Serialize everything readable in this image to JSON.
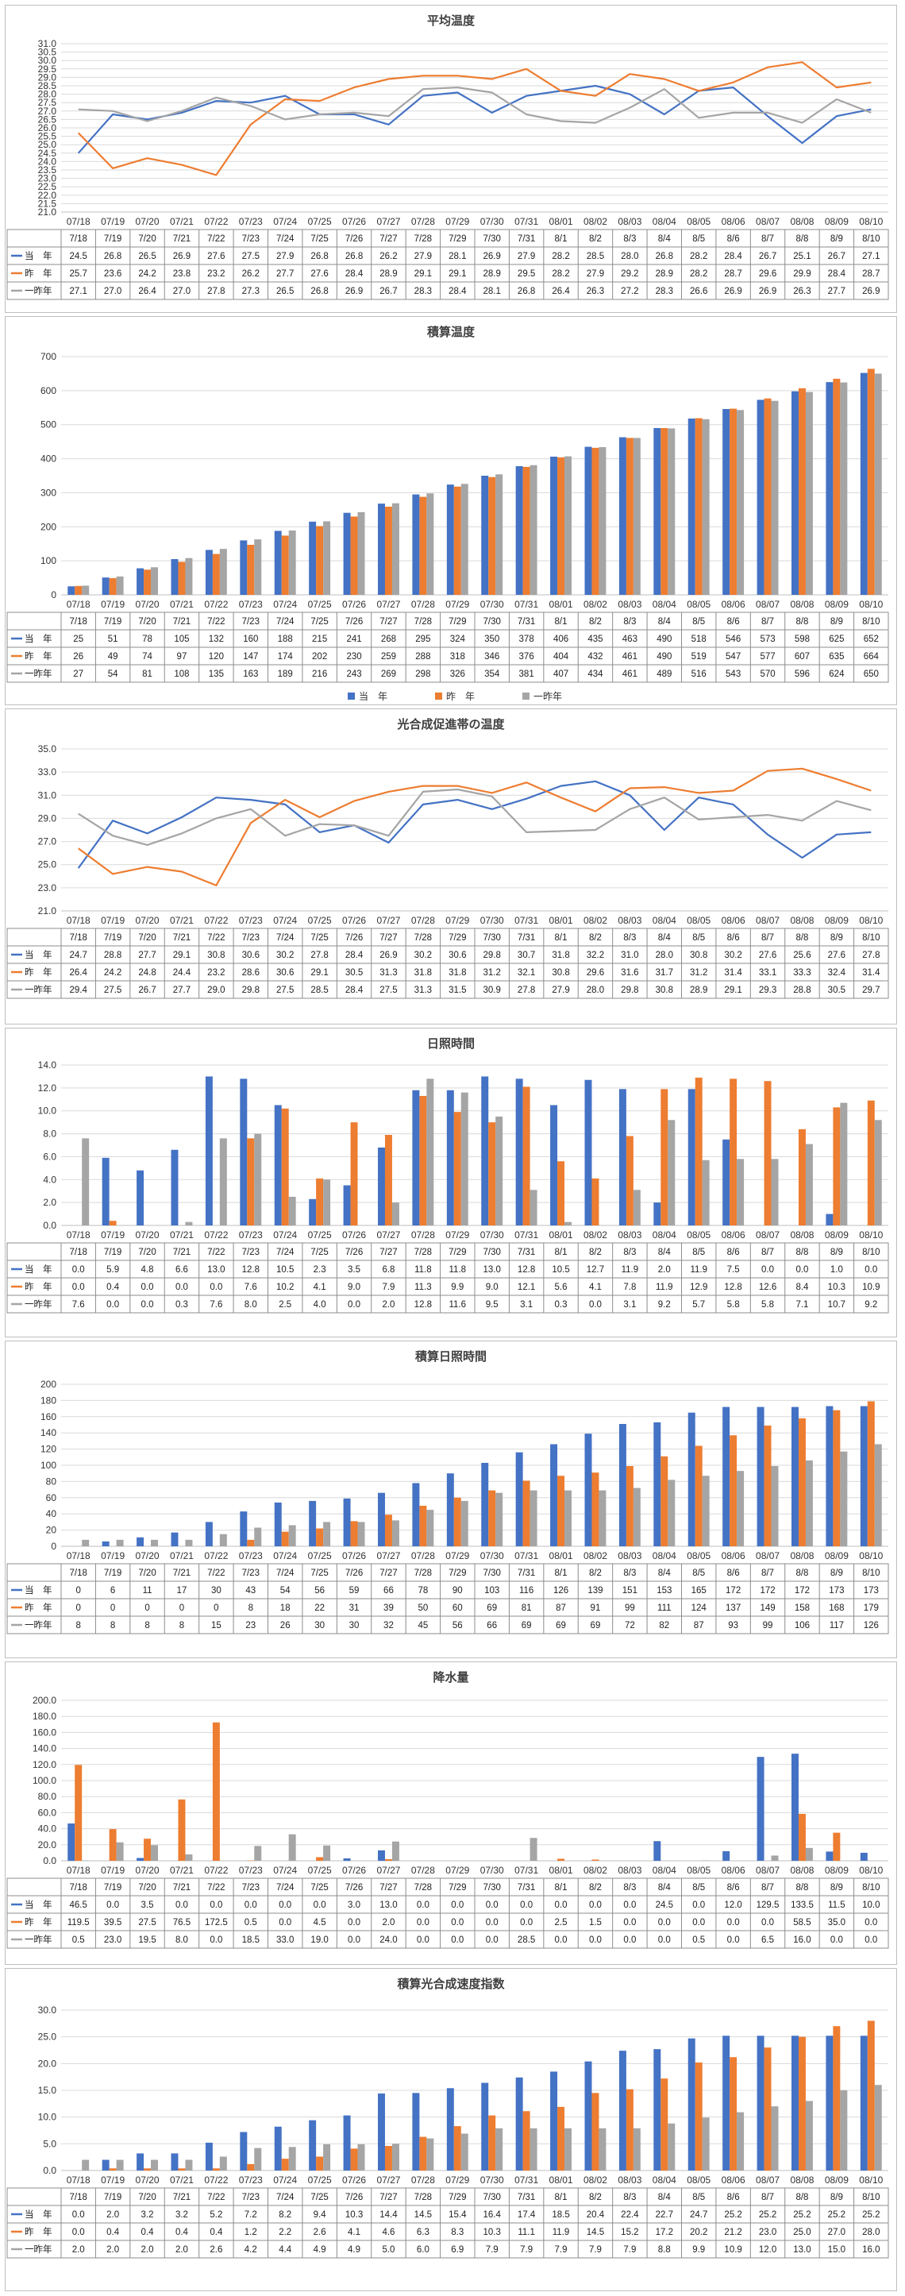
{
  "colors": {
    "current": "#4472C4",
    "last_year": "#ED7D31",
    "two_years_ago": "#A5A5A5"
  },
  "legend_labels": {
    "current": "当　年",
    "last_year": "昨　年",
    "two_years_ago": "一昨年"
  },
  "chart_data": [
    {
      "type": "line",
      "title": "平均温度",
      "categories": [
        "07/18",
        "07/19",
        "07/20",
        "07/21",
        "07/22",
        "07/23",
        "07/24",
        "07/25",
        "07/26",
        "07/27",
        "07/28",
        "07/29",
        "07/30",
        "07/31",
        "08/01",
        "08/02",
        "08/03",
        "08/04",
        "08/05",
        "08/06",
        "08/07",
        "08/08",
        "08/09",
        "08/10"
      ],
      "table_categories": [
        "7/18",
        "7/19",
        "7/20",
        "7/21",
        "7/22",
        "7/23",
        "7/24",
        "7/25",
        "7/26",
        "7/27",
        "7/28",
        "7/29",
        "7/30",
        "7/31",
        "8/1",
        "8/2",
        "8/3",
        "8/4",
        "8/5",
        "8/6",
        "8/7",
        "8/8",
        "8/9",
        "8/10"
      ],
      "ylim": [
        21.0,
        31.0
      ],
      "ystep": 0.5,
      "ydecimals": 1,
      "series": [
        {
          "key": "current",
          "name": "当　年",
          "values": [
            24.5,
            26.8,
            26.5,
            26.9,
            27.6,
            27.5,
            27.9,
            26.8,
            26.8,
            26.2,
            27.9,
            28.1,
            26.9,
            27.9,
            28.2,
            28.5,
            28.0,
            26.8,
            28.2,
            28.4,
            26.7,
            25.1,
            26.7,
            27.1
          ]
        },
        {
          "key": "last_year",
          "name": "昨　年",
          "values": [
            25.7,
            23.6,
            24.2,
            23.8,
            23.2,
            26.2,
            27.7,
            27.6,
            28.4,
            28.9,
            29.1,
            29.1,
            28.9,
            29.5,
            28.2,
            27.9,
            29.2,
            28.9,
            28.2,
            28.7,
            29.6,
            29.9,
            28.4,
            28.7
          ]
        },
        {
          "key": "two_years_ago",
          "name": "一昨年",
          "values": [
            27.1,
            27.0,
            26.4,
            27.0,
            27.8,
            27.3,
            26.5,
            26.8,
            26.9,
            26.7,
            28.3,
            28.4,
            28.1,
            26.8,
            26.4,
            26.3,
            27.2,
            28.3,
            26.6,
            26.9,
            26.9,
            26.3,
            27.7,
            26.9
          ]
        }
      ],
      "table_decimals": 1,
      "legend": "none"
    },
    {
      "type": "bar",
      "title": "積算温度",
      "categories": [
        "07/18",
        "07/19",
        "07/20",
        "07/21",
        "07/22",
        "07/23",
        "07/24",
        "07/25",
        "07/26",
        "07/27",
        "07/28",
        "07/29",
        "07/30",
        "07/31",
        "08/01",
        "08/02",
        "08/03",
        "08/04",
        "08/05",
        "08/06",
        "08/07",
        "08/08",
        "08/09",
        "08/10"
      ],
      "table_categories": [
        "7/18",
        "7/19",
        "7/20",
        "7/21",
        "7/22",
        "7/23",
        "7/24",
        "7/25",
        "7/26",
        "7/27",
        "7/28",
        "7/29",
        "7/30",
        "7/31",
        "8/1",
        "8/2",
        "8/3",
        "8/4",
        "8/5",
        "8/6",
        "8/7",
        "8/8",
        "8/9",
        "8/10"
      ],
      "ylim": [
        0,
        700
      ],
      "ystep": 100,
      "ydecimals": 0,
      "series": [
        {
          "key": "current",
          "name": "当　年",
          "values": [
            25,
            51,
            78,
            105,
            132,
            160,
            188,
            215,
            241,
            268,
            295,
            324,
            350,
            378,
            406,
            435,
            463,
            490,
            518,
            546,
            573,
            598,
            625,
            652
          ]
        },
        {
          "key": "last_year",
          "name": "昨　年",
          "values": [
            26,
            49,
            74,
            97,
            120,
            147,
            174,
            202,
            230,
            259,
            288,
            318,
            346,
            376,
            404,
            432,
            461,
            490,
            519,
            547,
            577,
            607,
            635,
            664
          ]
        },
        {
          "key": "two_years_ago",
          "name": "一昨年",
          "values": [
            27,
            54,
            81,
            108,
            135,
            163,
            189,
            216,
            243,
            269,
            298,
            326,
            354,
            381,
            407,
            434,
            461,
            489,
            516,
            543,
            570,
            596,
            624,
            650
          ]
        }
      ],
      "table_decimals": 0,
      "legend": "bottom"
    },
    {
      "type": "line",
      "title": "光合成促進帯の温度",
      "categories": [
        "07/18",
        "07/19",
        "07/20",
        "07/21",
        "07/22",
        "07/23",
        "07/24",
        "07/25",
        "07/26",
        "07/27",
        "07/28",
        "07/29",
        "07/30",
        "07/31",
        "08/01",
        "08/02",
        "08/03",
        "08/04",
        "08/05",
        "08/06",
        "08/07",
        "08/08",
        "08/09",
        "08/10"
      ],
      "table_categories": [
        "7/18",
        "7/19",
        "7/20",
        "7/21",
        "7/22",
        "7/23",
        "7/24",
        "7/25",
        "7/26",
        "7/27",
        "7/28",
        "7/29",
        "7/30",
        "7/31",
        "8/1",
        "8/2",
        "8/3",
        "8/4",
        "8/5",
        "8/6",
        "8/7",
        "8/8",
        "8/9",
        "8/10"
      ],
      "ylim": [
        21.0,
        35.0
      ],
      "ystep": 2.0,
      "ydecimals": 1,
      "series": [
        {
          "key": "current",
          "name": "当　年",
          "values": [
            24.7,
            28.8,
            27.7,
            29.1,
            30.8,
            30.6,
            30.2,
            27.8,
            28.4,
            26.9,
            30.2,
            30.6,
            29.8,
            30.7,
            31.8,
            32.2,
            31.0,
            28.0,
            30.8,
            30.2,
            27.6,
            25.6,
            27.6,
            27.8
          ]
        },
        {
          "key": "last_year",
          "name": "昨　年",
          "values": [
            26.4,
            24.2,
            24.8,
            24.4,
            23.2,
            28.6,
            30.6,
            29.1,
            30.5,
            31.3,
            31.8,
            31.8,
            31.2,
            32.1,
            30.8,
            29.6,
            31.6,
            31.7,
            31.2,
            31.4,
            33.1,
            33.3,
            32.4,
            31.4
          ]
        },
        {
          "key": "two_years_ago",
          "name": "一昨年",
          "values": [
            29.4,
            27.5,
            26.7,
            27.7,
            29.0,
            29.8,
            27.5,
            28.5,
            28.4,
            27.5,
            31.3,
            31.5,
            30.9,
            27.8,
            27.9,
            28.0,
            29.8,
            30.8,
            28.9,
            29.1,
            29.3,
            28.8,
            30.5,
            29.7
          ]
        }
      ],
      "table_decimals": 1,
      "legend": "none"
    },
    {
      "type": "bar",
      "title": "日照時間",
      "categories": [
        "07/18",
        "07/19",
        "07/20",
        "07/21",
        "07/22",
        "07/23",
        "07/24",
        "07/25",
        "07/26",
        "07/27",
        "07/28",
        "07/29",
        "07/30",
        "07/31",
        "08/01",
        "08/02",
        "08/03",
        "08/04",
        "08/05",
        "08/06",
        "08/07",
        "08/08",
        "08/09",
        "08/10"
      ],
      "table_categories": [
        "7/18",
        "7/19",
        "7/20",
        "7/21",
        "7/22",
        "7/23",
        "7/24",
        "7/25",
        "7/26",
        "7/27",
        "7/28",
        "7/29",
        "7/30",
        "7/31",
        "8/1",
        "8/2",
        "8/3",
        "8/4",
        "8/5",
        "8/6",
        "8/7",
        "8/8",
        "8/9",
        "8/10"
      ],
      "ylim": [
        0.0,
        14.0
      ],
      "ystep": 2.0,
      "ydecimals": 1,
      "series": [
        {
          "key": "current",
          "name": "当　年",
          "values": [
            0.0,
            5.9,
            4.8,
            6.6,
            13.0,
            12.8,
            10.5,
            2.3,
            3.5,
            6.8,
            11.8,
            11.8,
            13.0,
            12.8,
            10.5,
            12.7,
            11.9,
            2.0,
            11.9,
            7.5,
            0.0,
            0.0,
            1.0,
            0.0
          ]
        },
        {
          "key": "last_year",
          "name": "昨　年",
          "values": [
            0.0,
            0.4,
            0.0,
            0.0,
            0.0,
            7.6,
            10.2,
            4.1,
            9.0,
            7.9,
            11.3,
            9.9,
            9.0,
            12.1,
            5.6,
            4.1,
            7.8,
            11.9,
            12.9,
            12.8,
            12.6,
            8.4,
            10.3,
            10.9
          ]
        },
        {
          "key": "two_years_ago",
          "name": "一昨年",
          "values": [
            7.6,
            0.0,
            0.0,
            0.3,
            7.6,
            8.0,
            2.5,
            4.0,
            0.0,
            2.0,
            12.8,
            11.6,
            9.5,
            3.1,
            0.3,
            0.0,
            3.1,
            9.2,
            5.7,
            5.8,
            5.8,
            7.1,
            10.7,
            9.2
          ]
        }
      ],
      "table_decimals": 1,
      "legend": "none"
    },
    {
      "type": "bar",
      "title": "積算日照時間",
      "categories": [
        "07/18",
        "07/19",
        "07/20",
        "07/21",
        "07/22",
        "07/23",
        "07/24",
        "07/25",
        "07/26",
        "07/27",
        "07/28",
        "07/29",
        "07/30",
        "07/31",
        "08/01",
        "08/02",
        "08/03",
        "08/04",
        "08/05",
        "08/06",
        "08/07",
        "08/08",
        "08/09",
        "08/10"
      ],
      "table_categories": [
        "7/18",
        "7/19",
        "7/20",
        "7/21",
        "7/22",
        "7/23",
        "7/24",
        "7/25",
        "7/26",
        "7/27",
        "7/28",
        "7/29",
        "7/30",
        "7/31",
        "8/1",
        "8/2",
        "8/3",
        "8/4",
        "8/5",
        "8/6",
        "8/7",
        "8/8",
        "8/9",
        "8/10"
      ],
      "ylim": [
        0,
        200
      ],
      "ystep": 20,
      "ydecimals": 0,
      "series": [
        {
          "key": "current",
          "name": "当　年",
          "values": [
            0,
            6,
            11,
            17,
            30,
            43,
            54,
            56,
            59,
            66,
            78,
            90,
            103,
            116,
            126,
            139,
            151,
            153,
            165,
            172,
            172,
            172,
            173,
            173
          ]
        },
        {
          "key": "last_year",
          "name": "昨　年",
          "values": [
            0,
            0,
            0,
            0,
            0,
            8,
            18,
            22,
            31,
            39,
            50,
            60,
            69,
            81,
            87,
            91,
            99,
            111,
            124,
            137,
            149,
            158,
            168,
            179
          ]
        },
        {
          "key": "two_years_ago",
          "name": "一昨年",
          "values": [
            8,
            8,
            8,
            8,
            15,
            23,
            26,
            30,
            30,
            32,
            45,
            56,
            66,
            69,
            69,
            69,
            72,
            82,
            87,
            93,
            99,
            106,
            117,
            126
          ]
        }
      ],
      "table_decimals": 0,
      "legend": "none"
    },
    {
      "type": "bar",
      "title": "降水量",
      "categories": [
        "07/18",
        "07/19",
        "07/20",
        "07/21",
        "07/22",
        "07/23",
        "07/24",
        "07/25",
        "07/26",
        "07/27",
        "07/28",
        "07/29",
        "07/30",
        "07/31",
        "08/01",
        "08/02",
        "08/03",
        "08/04",
        "08/05",
        "08/06",
        "08/07",
        "08/08",
        "08/09",
        "08/10"
      ],
      "table_categories": [
        "7/18",
        "7/19",
        "7/20",
        "7/21",
        "7/22",
        "7/23",
        "7/24",
        "7/25",
        "7/26",
        "7/27",
        "7/28",
        "7/29",
        "7/30",
        "7/31",
        "8/1",
        "8/2",
        "8/3",
        "8/4",
        "8/5",
        "8/6",
        "8/7",
        "8/8",
        "8/9",
        "8/10"
      ],
      "ylim": [
        0.0,
        200.0
      ],
      "ystep": 20.0,
      "ydecimals": 1,
      "series": [
        {
          "key": "current",
          "name": "当　年",
          "values": [
            46.5,
            0.0,
            3.5,
            0.0,
            0.0,
            0.0,
            0.0,
            0.0,
            3.0,
            13.0,
            0.0,
            0.0,
            0.0,
            0.0,
            0.0,
            0.0,
            0.0,
            24.5,
            0.0,
            12.0,
            129.5,
            133.5,
            11.5,
            10.0
          ]
        },
        {
          "key": "last_year",
          "name": "昨　年",
          "values": [
            119.5,
            39.5,
            27.5,
            76.5,
            172.5,
            0.5,
            0.0,
            4.5,
            0.0,
            2.0,
            0.0,
            0.0,
            0.0,
            0.0,
            2.5,
            1.5,
            0.0,
            0.0,
            0.0,
            0.0,
            0.0,
            58.5,
            35.0,
            0.0
          ]
        },
        {
          "key": "two_years_ago",
          "name": "一昨年",
          "values": [
            0.5,
            23.0,
            19.5,
            8.0,
            0.0,
            18.5,
            33.0,
            19.0,
            0.0,
            24.0,
            0.0,
            0.0,
            0.0,
            28.5,
            0.0,
            0.0,
            0.0,
            0.0,
            0.5,
            0.0,
            6.5,
            16.0,
            0.0,
            0.0
          ]
        }
      ],
      "table_decimals": 1,
      "legend": "none"
    },
    {
      "type": "bar",
      "title": "積算光合成速度指数",
      "categories": [
        "07/18",
        "07/19",
        "07/20",
        "07/21",
        "07/22",
        "07/23",
        "07/24",
        "07/25",
        "07/26",
        "07/27",
        "07/28",
        "07/29",
        "07/30",
        "07/31",
        "08/01",
        "08/02",
        "08/03",
        "08/04",
        "08/05",
        "08/06",
        "08/07",
        "08/08",
        "08/09",
        "08/10"
      ],
      "table_categories": [
        "7/18",
        "7/19",
        "7/20",
        "7/21",
        "7/22",
        "7/23",
        "7/24",
        "7/25",
        "7/26",
        "7/27",
        "7/28",
        "7/29",
        "7/30",
        "7/31",
        "8/1",
        "8/2",
        "8/3",
        "8/4",
        "8/5",
        "8/6",
        "8/7",
        "8/8",
        "8/9",
        "8/10"
      ],
      "ylim": [
        0.0,
        30.0
      ],
      "ystep": 5.0,
      "ydecimals": 1,
      "series": [
        {
          "key": "current",
          "name": "当　年",
          "values": [
            0.0,
            2.0,
            3.2,
            3.2,
            5.2,
            7.2,
            8.2,
            9.4,
            10.3,
            14.4,
            14.5,
            15.4,
            16.4,
            17.4,
            18.5,
            20.4,
            22.4,
            22.7,
            24.7,
            25.2,
            25.2,
            25.2,
            25.2,
            25.2
          ]
        },
        {
          "key": "last_year",
          "name": "昨　年",
          "values": [
            0.0,
            0.4,
            0.4,
            0.4,
            0.4,
            1.2,
            2.2,
            2.6,
            4.1,
            4.6,
            6.3,
            8.3,
            10.3,
            11.1,
            11.9,
            14.5,
            15.2,
            17.2,
            20.2,
            21.2,
            23.0,
            25.0,
            27.0,
            28.0
          ]
        },
        {
          "key": "two_years_ago",
          "name": "一昨年",
          "values": [
            2.0,
            2.0,
            2.0,
            2.0,
            2.6,
            4.2,
            4.4,
            4.9,
            4.9,
            5.0,
            6.0,
            6.9,
            7.9,
            7.9,
            7.9,
            7.9,
            7.9,
            8.8,
            9.9,
            10.9,
            12.0,
            13.0,
            15.0,
            16.0
          ]
        }
      ],
      "table_decimals": 1,
      "legend": "none"
    }
  ]
}
